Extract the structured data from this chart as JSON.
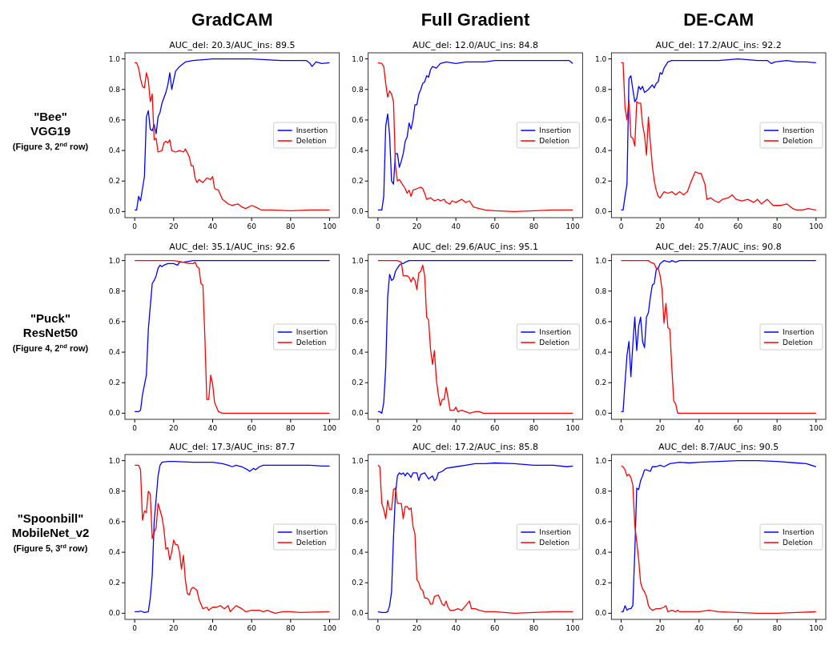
{
  "chart_data": [
    {
      "type": "line",
      "title": "GradCAM",
      "subtitle": "AUC_del: 20.3/AUC_ins: 89.5",
      "annotations": [
        "\"Bee\"",
        "VGG19",
        "(Figure 3, 2$^{nd}$ row)"
      ],
      "xlim": [
        -5,
        105
      ],
      "ylim": [
        -0.04,
        1.04
      ],
      "xticks": [
        0,
        20,
        40,
        60,
        80,
        100
      ],
      "yticks": [
        {
          "value": 0,
          "label": "0.0"
        },
        {
          "value": 0.2,
          "label": "0.2"
        },
        {
          "value": 0.4,
          "label": "0.4"
        },
        {
          "value": 0.6,
          "label": "0.6"
        },
        {
          "value": 0.8,
          "label": "0.8"
        },
        {
          "value": 1,
          "label": "1.0"
        }
      ],
      "legend": "right",
      "series": [
        {
          "name": "Insertion",
          "color": "#0000ff",
          "x": [
            0,
            1,
            2,
            3,
            4,
            5,
            6,
            7,
            8,
            9,
            10,
            11,
            12,
            13,
            14,
            16,
            17,
            18,
            19,
            20,
            21,
            23,
            26,
            30,
            40,
            60,
            75,
            85,
            88,
            90,
            91,
            93,
            96,
            100
          ],
          "values": [
            0.01,
            0.01,
            0.1,
            0.07,
            0.15,
            0.23,
            0.62,
            0.66,
            0.54,
            0.53,
            0.57,
            0.51,
            0.62,
            0.65,
            0.71,
            0.78,
            0.83,
            0.91,
            0.8,
            0.86,
            0.92,
            0.95,
            0.98,
            0.99,
            1.0,
            1.0,
            0.99,
            0.99,
            0.99,
            0.97,
            0.95,
            0.98,
            0.97,
            0.975
          ]
        },
        {
          "name": "Deletion",
          "color": "#ff0000",
          "x": [
            0,
            1,
            2,
            3,
            4,
            5,
            6,
            7,
            8,
            9,
            10,
            11,
            12,
            14,
            15,
            16,
            17,
            18,
            19,
            21,
            23,
            25,
            26,
            28,
            29,
            30,
            31,
            32,
            33,
            35,
            37,
            39,
            40,
            41,
            43,
            45,
            48,
            50,
            53,
            55,
            57,
            60,
            62,
            65,
            70,
            80,
            90,
            100
          ],
          "values": [
            0.975,
            0.975,
            0.94,
            0.87,
            0.82,
            0.81,
            0.91,
            0.86,
            0.72,
            0.77,
            0.47,
            0.48,
            0.39,
            0.4,
            0.45,
            0.46,
            0.45,
            0.47,
            0.4,
            0.39,
            0.4,
            0.39,
            0.41,
            0.36,
            0.3,
            0.3,
            0.22,
            0.19,
            0.21,
            0.19,
            0.22,
            0.21,
            0.23,
            0.15,
            0.14,
            0.08,
            0.05,
            0.04,
            0.05,
            0.03,
            0.02,
            0.04,
            0.03,
            0.01,
            0.01,
            0.005,
            0.01,
            0.01
          ]
        }
      ]
    },
    {
      "type": "line",
      "title": "Full Gradient",
      "subtitle": "AUC_del: 12.0/AUC_ins: 84.8",
      "xlim": [
        -5,
        105
      ],
      "ylim": [
        -0.04,
        1.04
      ],
      "xticks": [
        0,
        20,
        40,
        60,
        80,
        100
      ],
      "yticks": [
        {
          "value": 0,
          "label": "0.0"
        },
        {
          "value": 0.2,
          "label": "0.2"
        },
        {
          "value": 0.4,
          "label": "0.4"
        },
        {
          "value": 0.6,
          "label": "0.6"
        },
        {
          "value": 0.8,
          "label": "0.8"
        },
        {
          "value": 1,
          "label": "1.0"
        }
      ],
      "legend": "right",
      "series": [
        {
          "name": "Insertion",
          "color": "#0000ff",
          "x": [
            0,
            2,
            3,
            4,
            5,
            6,
            7,
            8,
            9,
            10,
            11,
            12,
            13,
            14,
            15,
            16,
            17,
            18,
            19,
            20,
            21,
            22,
            23,
            24,
            25,
            26,
            27,
            28,
            30,
            32,
            35,
            40,
            45,
            55,
            60,
            70,
            80,
            90,
            98,
            100
          ],
          "values": [
            0.01,
            0.01,
            0.1,
            0.56,
            0.64,
            0.5,
            0.2,
            0.18,
            0.38,
            0.38,
            0.29,
            0.33,
            0.38,
            0.46,
            0.49,
            0.58,
            0.54,
            0.6,
            0.7,
            0.7,
            0.77,
            0.8,
            0.84,
            0.85,
            0.89,
            0.88,
            0.93,
            0.95,
            0.94,
            0.97,
            0.98,
            0.97,
            0.98,
            0.98,
            0.99,
            0.99,
            0.99,
            0.99,
            0.99,
            0.97
          ]
        },
        {
          "name": "Deletion",
          "color": "#ff0000",
          "x": [
            0,
            2,
            3,
            4,
            5,
            6,
            7,
            8,
            9,
            10,
            11,
            12,
            14,
            15,
            16,
            17,
            18,
            20,
            22,
            23,
            24,
            25,
            27,
            29,
            31,
            32,
            34,
            35,
            37,
            38,
            40,
            43,
            45,
            47,
            49,
            52,
            55,
            60,
            70,
            80,
            90,
            100
          ],
          "values": [
            0.975,
            0.97,
            0.95,
            0.84,
            0.75,
            0.79,
            0.77,
            0.72,
            0.3,
            0.2,
            0.21,
            0.19,
            0.15,
            0.12,
            0.14,
            0.1,
            0.14,
            0.15,
            0.16,
            0.15,
            0.12,
            0.08,
            0.09,
            0.07,
            0.08,
            0.07,
            0.08,
            0.06,
            0.05,
            0.07,
            0.06,
            0.08,
            0.06,
            0.07,
            0.03,
            0.02,
            0.01,
            0.005,
            0.0,
            0.005,
            0.01,
            0.01
          ]
        }
      ]
    },
    {
      "type": "line",
      "title": "DE-CAM",
      "subtitle": "AUC_del: 17.2/AUC_ins: 92.2",
      "xlim": [
        -5,
        105
      ],
      "ylim": [
        -0.04,
        1.04
      ],
      "xticks": [
        0,
        20,
        40,
        60,
        80,
        100
      ],
      "yticks": [
        {
          "value": 0,
          "label": "0.0"
        },
        {
          "value": 0.2,
          "label": "0.2"
        },
        {
          "value": 0.4,
          "label": "0.4"
        },
        {
          "value": 0.6,
          "label": "0.6"
        },
        {
          "value": 0.8,
          "label": "0.8"
        },
        {
          "value": 1,
          "label": "1.0"
        }
      ],
      "legend": "right",
      "series": [
        {
          "name": "Insertion",
          "color": "#0000ff",
          "x": [
            0,
            1,
            2,
            3,
            4,
            5,
            6,
            7,
            8,
            9,
            10,
            11,
            12,
            13,
            14,
            16,
            17,
            18,
            19,
            20,
            21,
            22,
            24,
            26,
            30,
            40,
            50,
            60,
            70,
            75,
            77,
            79,
            85,
            90,
            95,
            100
          ],
          "values": [
            0.01,
            0.01,
            0.1,
            0.18,
            0.87,
            0.89,
            0.8,
            0.72,
            0.74,
            0.82,
            0.8,
            0.82,
            0.78,
            0.79,
            0.8,
            0.83,
            0.81,
            0.84,
            0.85,
            0.91,
            0.9,
            0.94,
            0.98,
            0.99,
            0.99,
            0.99,
            0.99,
            1.0,
            0.99,
            0.99,
            0.97,
            0.98,
            0.99,
            0.98,
            0.98,
            0.975
          ]
        },
        {
          "name": "Deletion",
          "color": "#ff0000",
          "x": [
            0,
            1,
            2,
            3,
            4,
            5,
            6,
            7,
            8,
            9,
            10,
            11,
            12,
            13,
            14,
            15,
            16,
            17,
            18,
            19,
            20,
            22,
            24,
            26,
            28,
            30,
            32,
            34,
            36,
            38,
            40,
            41,
            43,
            44,
            46,
            48,
            50,
            52,
            55,
            57,
            59,
            62,
            65,
            68,
            70,
            72,
            75,
            78,
            82,
            85,
            88,
            90,
            93,
            96,
            100
          ],
          "values": [
            0.975,
            0.975,
            0.68,
            0.6,
            0.73,
            0.49,
            0.48,
            0.43,
            0.72,
            0.71,
            0.71,
            0.57,
            0.5,
            0.37,
            0.62,
            0.45,
            0.3,
            0.2,
            0.14,
            0.1,
            0.09,
            0.13,
            0.12,
            0.13,
            0.11,
            0.13,
            0.11,
            0.13,
            0.2,
            0.26,
            0.25,
            0.25,
            0.18,
            0.08,
            0.09,
            0.07,
            0.06,
            0.08,
            0.09,
            0.11,
            0.08,
            0.07,
            0.08,
            0.06,
            0.08,
            0.05,
            0.08,
            0.04,
            0.04,
            0.05,
            0.02,
            0.01,
            0.01,
            0.02,
            0.01
          ]
        }
      ]
    },
    {
      "type": "line",
      "subtitle": "AUC_del: 35.1/AUC_ins: 92.6",
      "annotations": [
        "\"Puck\"",
        "ResNet50",
        "(Figure 4, 2$^{nd}$ row)"
      ],
      "xlim": [
        -5,
        105
      ],
      "ylim": [
        -0.04,
        1.04
      ],
      "xticks": [
        0,
        20,
        40,
        60,
        80,
        100
      ],
      "yticks": [
        {
          "value": 0,
          "label": "0.0"
        },
        {
          "value": 0.2,
          "label": "0.2"
        },
        {
          "value": 0.4,
          "label": "0.4"
        },
        {
          "value": 0.6,
          "label": "0.6"
        },
        {
          "value": 0.8,
          "label": "0.8"
        },
        {
          "value": 1,
          "label": "1.0"
        }
      ],
      "legend": "right",
      "series": [
        {
          "name": "Insertion",
          "color": "#0000ff",
          "x": [
            0,
            2,
            3,
            4,
            6,
            7,
            8,
            9,
            10,
            11,
            12,
            13,
            14,
            15,
            17,
            20,
            22,
            23,
            25,
            30,
            40,
            100
          ],
          "values": [
            0.01,
            0.01,
            0.02,
            0.12,
            0.25,
            0.55,
            0.7,
            0.85,
            0.87,
            0.9,
            0.95,
            0.97,
            0.96,
            0.97,
            0.98,
            0.98,
            0.97,
            0.99,
            0.99,
            1.0,
            1.0,
            1.0
          ]
        },
        {
          "name": "Deletion",
          "color": "#ff0000",
          "x": [
            0,
            20,
            25,
            28,
            30,
            31,
            32,
            33,
            34,
            35,
            36,
            37,
            38,
            39,
            40,
            41,
            42,
            43,
            45,
            100
          ],
          "values": [
            1.0,
            1.0,
            0.99,
            0.98,
            0.98,
            0.99,
            0.96,
            0.95,
            0.85,
            0.84,
            0.5,
            0.09,
            0.09,
            0.25,
            0.19,
            0.07,
            0.04,
            0.01,
            0.0,
            0.0
          ]
        }
      ]
    },
    {
      "type": "line",
      "subtitle": "AUC_del: 29.6/AUC_ins: 95.1",
      "xlim": [
        -5,
        105
      ],
      "ylim": [
        -0.04,
        1.04
      ],
      "xticks": [
        0,
        20,
        40,
        60,
        80,
        100
      ],
      "yticks": [
        {
          "value": 0,
          "label": "0.0"
        },
        {
          "value": 0.2,
          "label": "0.2"
        },
        {
          "value": 0.4,
          "label": "0.4"
        },
        {
          "value": 0.6,
          "label": "0.6"
        },
        {
          "value": 0.8,
          "label": "0.8"
        },
        {
          "value": 1,
          "label": "1.0"
        }
      ],
      "legend": "right",
      "series": [
        {
          "name": "Insertion",
          "color": "#0000ff",
          "x": [
            0,
            1,
            2,
            3,
            4,
            5,
            6,
            7,
            8,
            9,
            10,
            11,
            12,
            13,
            14,
            16,
            100
          ],
          "values": [
            0.01,
            0.01,
            0.0,
            0.07,
            0.3,
            0.76,
            0.91,
            0.87,
            0.88,
            0.93,
            0.95,
            0.97,
            0.98,
            0.98,
            0.99,
            1.0,
            1.0
          ]
        },
        {
          "name": "Deletion",
          "color": "#ff0000",
          "x": [
            0,
            10,
            12,
            13,
            15,
            16,
            17,
            18,
            19,
            20,
            21,
            22,
            23,
            24,
            25,
            26,
            27,
            28,
            29,
            30,
            31,
            32,
            33,
            34,
            35,
            36,
            37,
            39,
            40,
            41,
            43,
            45,
            47,
            50,
            52,
            54,
            100
          ],
          "values": [
            1.0,
            1.0,
            0.99,
            0.9,
            0.9,
            0.89,
            0.86,
            0.89,
            0.87,
            0.81,
            0.92,
            0.93,
            0.97,
            0.9,
            0.63,
            0.61,
            0.42,
            0.32,
            0.41,
            0.22,
            0.12,
            0.05,
            0.09,
            0.09,
            0.17,
            0.1,
            0.02,
            0.02,
            0.04,
            0.01,
            0.02,
            0.01,
            0.0,
            0.01,
            0.01,
            0.0,
            0.0
          ]
        }
      ]
    },
    {
      "type": "line",
      "subtitle": "AUC_del: 25.7/AUC_ins: 90.8",
      "xlim": [
        -5,
        105
      ],
      "ylim": [
        -0.04,
        1.04
      ],
      "xticks": [
        0,
        20,
        40,
        60,
        80,
        100
      ],
      "yticks": [
        {
          "value": 0,
          "label": "0.0"
        },
        {
          "value": 0.2,
          "label": "0.2"
        },
        {
          "value": 0.4,
          "label": "0.4"
        },
        {
          "value": 0.6,
          "label": "0.6"
        },
        {
          "value": 0.8,
          "label": "0.8"
        },
        {
          "value": 1,
          "label": "1.0"
        }
      ],
      "legend": "right",
      "series": [
        {
          "name": "Insertion",
          "color": "#0000ff",
          "x": [
            0,
            1,
            2,
            3,
            4,
            5,
            6,
            7,
            8,
            9,
            10,
            11,
            12,
            13,
            14,
            15,
            16,
            17,
            18,
            19,
            20,
            21,
            22,
            25,
            26,
            28,
            30,
            100
          ],
          "values": [
            0.01,
            0.01,
            0.2,
            0.38,
            0.47,
            0.24,
            0.45,
            0.63,
            0.41,
            0.57,
            0.63,
            0.47,
            0.43,
            0.63,
            0.66,
            0.76,
            0.84,
            0.85,
            0.94,
            0.95,
            0.98,
            0.99,
            1.0,
            0.99,
            1.0,
            0.99,
            1.0,
            1.0
          ]
        },
        {
          "name": "Deletion",
          "color": "#ff0000",
          "x": [
            0,
            14,
            15,
            17,
            18,
            19,
            20,
            21,
            22,
            23,
            24,
            25,
            26,
            27,
            28,
            29,
            100
          ],
          "values": [
            1.0,
            1.0,
            0.99,
            0.98,
            0.95,
            0.95,
            0.9,
            0.81,
            0.59,
            0.72,
            0.56,
            0.55,
            0.3,
            0.08,
            0.06,
            0.0,
            0.0
          ]
        }
      ]
    },
    {
      "type": "line",
      "subtitle": "AUC_del: 17.3/AUC_ins: 87.7",
      "annotations": [
        "\"Spoonbill\"",
        "MobileNet_v2",
        "(Figure 5, 3$^{rd}$ row)"
      ],
      "xlim": [
        -5,
        105
      ],
      "ylim": [
        -0.04,
        1.04
      ],
      "xticks": [
        0,
        20,
        40,
        60,
        80,
        100
      ],
      "yticks": [
        {
          "value": 0,
          "label": "0.0"
        },
        {
          "value": 0.2,
          "label": "0.2"
        },
        {
          "value": 0.4,
          "label": "0.4"
        },
        {
          "value": 0.6,
          "label": "0.6"
        },
        {
          "value": 0.8,
          "label": "0.8"
        },
        {
          "value": 1,
          "label": "1.0"
        }
      ],
      "legend": "right",
      "series": [
        {
          "name": "Insertion",
          "color": "#0000ff",
          "x": [
            0,
            2,
            3,
            5,
            7,
            8,
            9,
            10,
            11,
            12,
            13,
            14,
            17,
            20,
            30,
            40,
            45,
            48,
            50,
            52,
            55,
            58,
            59,
            61,
            62,
            64,
            66,
            70,
            80,
            90,
            96,
            100
          ],
          "values": [
            0.01,
            0.01,
            0.015,
            0.005,
            0.01,
            0.1,
            0.25,
            0.6,
            0.75,
            0.9,
            0.97,
            0.99,
            0.995,
            0.995,
            0.99,
            0.99,
            0.98,
            0.97,
            0.96,
            0.97,
            0.96,
            0.94,
            0.93,
            0.95,
            0.94,
            0.96,
            0.97,
            0.97,
            0.97,
            0.97,
            0.965,
            0.965
          ]
        },
        {
          "name": "Deletion",
          "color": "#ff0000",
          "x": [
            0,
            1,
            2,
            3,
            4,
            5,
            6,
            7,
            8,
            9,
            10,
            11,
            12,
            14,
            15,
            16,
            17,
            18,
            19,
            20,
            21,
            22,
            23,
            24,
            25,
            26,
            27,
            28,
            29,
            30,
            32,
            33,
            35,
            37,
            38,
            40,
            42,
            44,
            46,
            48,
            49,
            52,
            55,
            57,
            60,
            64,
            66,
            68,
            72,
            76,
            80,
            85,
            100
          ],
          "values": [
            0.97,
            0.97,
            0.97,
            0.94,
            0.61,
            0.67,
            0.66,
            0.8,
            0.78,
            0.49,
            0.53,
            0.56,
            0.72,
            0.63,
            0.55,
            0.42,
            0.43,
            0.35,
            0.4,
            0.48,
            0.45,
            0.45,
            0.4,
            0.29,
            0.38,
            0.22,
            0.13,
            0.12,
            0.16,
            0.17,
            0.15,
            0.09,
            0.03,
            0.04,
            0.02,
            0.04,
            0.04,
            0.05,
            0.03,
            0.05,
            0.01,
            0.05,
            0.03,
            0.01,
            0.02,
            0.02,
            0.01,
            0.02,
            0.0,
            0.01,
            0.01,
            0.005,
            0.01
          ]
        }
      ]
    },
    {
      "type": "line",
      "subtitle": "AUC_del: 17.2/AUC_ins: 85.8",
      "xlim": [
        -5,
        105
      ],
      "ylim": [
        -0.04,
        1.04
      ],
      "xticks": [
        0,
        20,
        40,
        60,
        80,
        100
      ],
      "yticks": [
        {
          "value": 0,
          "label": "0.0"
        },
        {
          "value": 0.2,
          "label": "0.2"
        },
        {
          "value": 0.4,
          "label": "0.4"
        },
        {
          "value": 0.6,
          "label": "0.6"
        },
        {
          "value": 0.8,
          "label": "0.8"
        },
        {
          "value": 1,
          "label": "1.0"
        }
      ],
      "legend": "right",
      "series": [
        {
          "name": "Insertion",
          "color": "#0000ff",
          "x": [
            0,
            2,
            4,
            5,
            6,
            7,
            8,
            9,
            10,
            11,
            12,
            13,
            14,
            15,
            16,
            17,
            18,
            20,
            21,
            22,
            24,
            26,
            28,
            29,
            30,
            31,
            33,
            35,
            40,
            45,
            50,
            55,
            60,
            70,
            80,
            90,
            97,
            100
          ],
          "values": [
            0.01,
            0.005,
            0.005,
            0.01,
            0.05,
            0.14,
            0.5,
            0.78,
            0.9,
            0.92,
            0.91,
            0.92,
            0.9,
            0.92,
            0.91,
            0.89,
            0.92,
            0.92,
            0.87,
            0.91,
            0.92,
            0.88,
            0.9,
            0.87,
            0.88,
            0.92,
            0.93,
            0.95,
            0.96,
            0.97,
            0.98,
            0.98,
            0.985,
            0.98,
            0.97,
            0.97,
            0.96,
            0.965
          ]
        },
        {
          "name": "Deletion",
          "color": "#ff0000",
          "x": [
            0,
            1,
            2,
            3,
            4,
            5,
            6,
            7,
            8,
            9,
            10,
            11,
            12,
            13,
            14,
            15,
            16,
            17,
            18,
            19,
            20,
            21,
            22,
            23,
            24,
            25,
            26,
            27,
            28,
            29,
            31,
            32,
            33,
            34,
            35,
            36,
            37,
            39,
            41,
            43,
            45,
            47,
            48,
            50,
            52,
            55,
            60,
            70,
            80,
            90,
            100
          ],
          "values": [
            0.97,
            0.96,
            0.72,
            0.68,
            0.62,
            0.74,
            0.68,
            0.68,
            0.81,
            0.82,
            0.72,
            0.72,
            0.72,
            0.62,
            0.7,
            0.7,
            0.68,
            0.69,
            0.57,
            0.52,
            0.22,
            0.2,
            0.16,
            0.15,
            0.1,
            0.1,
            0.09,
            0.06,
            0.06,
            0.11,
            0.12,
            0.09,
            0.06,
            0.05,
            0.08,
            0.04,
            0.02,
            0.02,
            0.03,
            0.02,
            0.05,
            0.08,
            0.03,
            0.03,
            0.02,
            0.01,
            0.01,
            0.0,
            0.005,
            0.01,
            0.01
          ]
        }
      ]
    },
    {
      "type": "line",
      "subtitle": "AUC_del: 8.7/AUC_ins: 90.5",
      "xlim": [
        -5,
        105
      ],
      "ylim": [
        -0.04,
        1.04
      ],
      "xticks": [
        0,
        20,
        40,
        60,
        80,
        100
      ],
      "yticks": [
        {
          "value": 0,
          "label": "0.0"
        },
        {
          "value": 0.2,
          "label": "0.2"
        },
        {
          "value": 0.4,
          "label": "0.4"
        },
        {
          "value": 0.6,
          "label": "0.6"
        },
        {
          "value": 0.8,
          "label": "0.8"
        },
        {
          "value": 1,
          "label": "1.0"
        }
      ],
      "legend": "right",
      "series": [
        {
          "name": "Insertion",
          "color": "#0000ff",
          "x": [
            0,
            1,
            2,
            3,
            4,
            5,
            6,
            7,
            8,
            9,
            10,
            11,
            12,
            13,
            15,
            16,
            18,
            20,
            22,
            25,
            30,
            35,
            40,
            50,
            60,
            70,
            80,
            90,
            95,
            100
          ],
          "values": [
            0.01,
            0.01,
            0.05,
            0.02,
            0.03,
            0.03,
            0.05,
            0.4,
            0.82,
            0.81,
            0.87,
            0.9,
            0.94,
            0.94,
            0.93,
            0.96,
            0.96,
            0.97,
            0.96,
            0.98,
            0.99,
            0.985,
            0.99,
            0.995,
            1.0,
            1.0,
            0.995,
            0.985,
            0.98,
            0.96
          ]
        },
        {
          "name": "Deletion",
          "color": "#ff0000",
          "x": [
            0,
            1,
            2,
            3,
            4,
            5,
            6,
            7,
            8,
            9,
            10,
            11,
            12,
            13,
            14,
            15,
            16,
            18,
            20,
            22,
            23,
            24,
            26,
            28,
            29,
            30,
            35,
            40,
            45,
            50,
            60,
            70,
            80,
            90,
            100
          ],
          "values": [
            0.965,
            0.96,
            0.94,
            0.9,
            0.91,
            0.89,
            0.84,
            0.58,
            0.47,
            0.35,
            0.2,
            0.16,
            0.14,
            0.11,
            0.05,
            0.03,
            0.02,
            0.03,
            0.03,
            0.04,
            0.05,
            0.01,
            0.02,
            0.01,
            0.02,
            0.01,
            0.01,
            0.01,
            0.02,
            0.01,
            0.005,
            0.0,
            0.0,
            0.005,
            0.01
          ]
        }
      ]
    }
  ]
}
